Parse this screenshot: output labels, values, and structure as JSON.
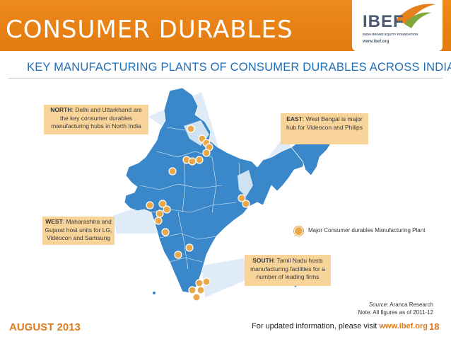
{
  "header": {
    "title": "CONSUMER DURABLES",
    "logo_text": "IBEF",
    "logo_subtitle": "INDIA BRAND EQUITY FOUNDATION",
    "logo_url": "www.ibef.org",
    "brand_color": "#e27a10"
  },
  "subtitle": "KEY MANUFACTURING PLANTS OF CONSUMER DURABLES ACROSS INDIA",
  "callouts": {
    "north": {
      "region": "NORTH",
      "text": ": Delhi and Uttarkhand are the key consumer durables manufacturing hubs in North India"
    },
    "east": {
      "region": "EAST",
      "text": ": West Bengal is major hub for Videocon and Philips"
    },
    "west": {
      "region": "WEST",
      "text": ": Maharashtra and Gujarat host units for LG, Videocon and Samsung"
    },
    "south": {
      "region": "SOUTH",
      "text": ": Tamil Nadu hosts manufacturing facilities for a number of leading firms"
    }
  },
  "legend": {
    "label": "Major Consumer durables Manufacturing Plant",
    "marker_color": "#e9a94b"
  },
  "source": {
    "label": "Source",
    "text": ": Aranca Research",
    "note": "Note: All figures as of 2011-12"
  },
  "footer": {
    "date": "AUGUST 2013",
    "info_text": "For updated information, please visit ",
    "info_url": "www.ibef.org",
    "page_number": "18"
  },
  "map": {
    "fill_color": "#3a88c9",
    "highlight_color": "#d9e8f4",
    "region_count": "many",
    "marker_icon": "plant-marker-icon"
  }
}
